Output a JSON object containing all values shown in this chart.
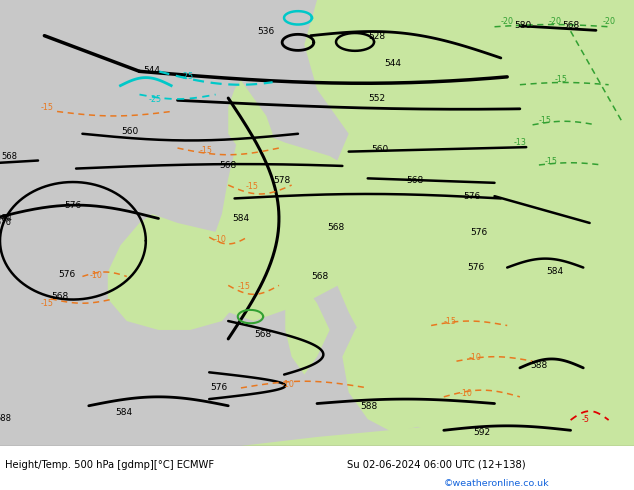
{
  "title_left": "Height/Temp. 500 hPa [gdmp][°C] ECMWF",
  "title_right": "Su 02-06-2024 06:00 UTC (12+138)",
  "credit": "©weatheronline.co.uk",
  "fig_width": 6.34,
  "fig_height": 4.9,
  "dpi": 100,
  "bg_gray": "#c8c8c8",
  "bg_green": "#c8e6a0",
  "contour_black": "#000000",
  "contour_orange": "#e87820",
  "contour_cyan": "#00c8c8",
  "contour_green": "#32a032",
  "contour_red": "#e00000",
  "footer_color": "#000000",
  "credit_color": "#1464dc"
}
